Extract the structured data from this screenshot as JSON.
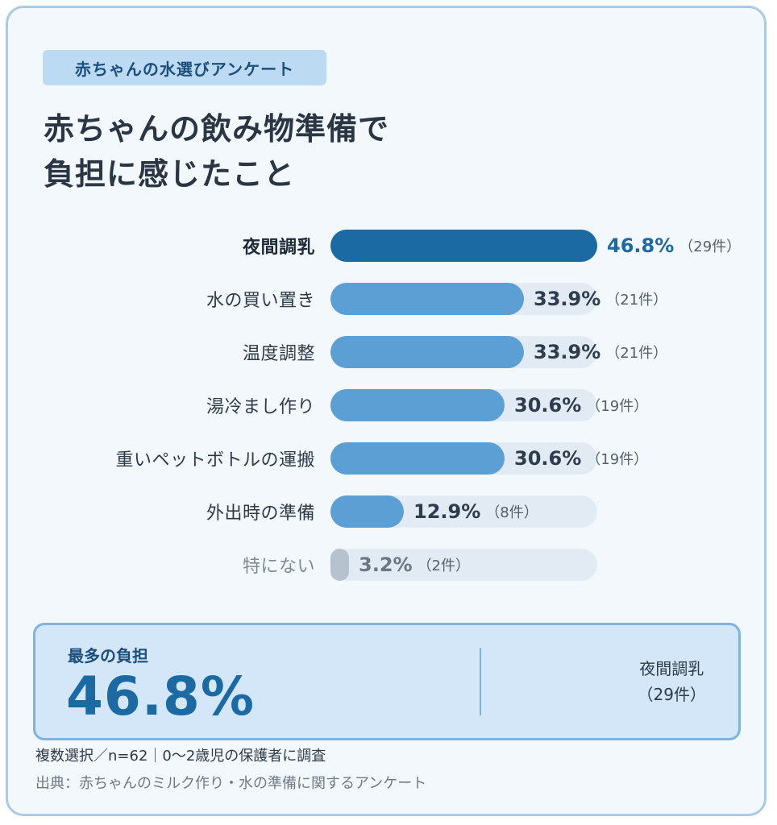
{
  "header": {
    "tag": "赤ちゃんの水選びアンケート",
    "title_line1": "赤ちゃんの飲み物準備で",
    "title_line2": "負担に感じたこと"
  },
  "chart_data": {
    "type": "bar",
    "orientation": "horizontal",
    "unit": "%",
    "xlim": [
      0,
      46.8
    ],
    "categories": [
      "夜間調乳",
      "水の買い置き",
      "温度調整",
      "湯冷まし作り",
      "重いペットボトルの運搬",
      "外出時の準備",
      "特にない"
    ],
    "values": [
      46.8,
      33.9,
      33.9,
      30.6,
      30.6,
      12.9,
      3.2
    ],
    "value_labels": [
      "46.8%",
      "33.9%",
      "33.9%",
      "30.6%",
      "30.6%",
      "12.9%",
      "3.2%"
    ],
    "counts": [
      "（29件）",
      "（21件）",
      "（21件）",
      "（19件）",
      "（19件）",
      "（8件）",
      "（2件）"
    ],
    "highlight_index": 0,
    "muted_index": 6,
    "colors": {
      "highlight": "#1c6aa3",
      "normal": "#5b9fd4",
      "muted": "#b6c3cf",
      "track": "#e2ebf3"
    }
  },
  "summary": {
    "label": "最多の負担",
    "value": "46.8%",
    "item": "夜間調乳",
    "count": "（29件）"
  },
  "footer": {
    "note": "複数選択／n=62｜0〜2歳児の保護者に調査",
    "source": "出典：赤ちゃんのミルク作り・水の準備に関するアンケート"
  }
}
